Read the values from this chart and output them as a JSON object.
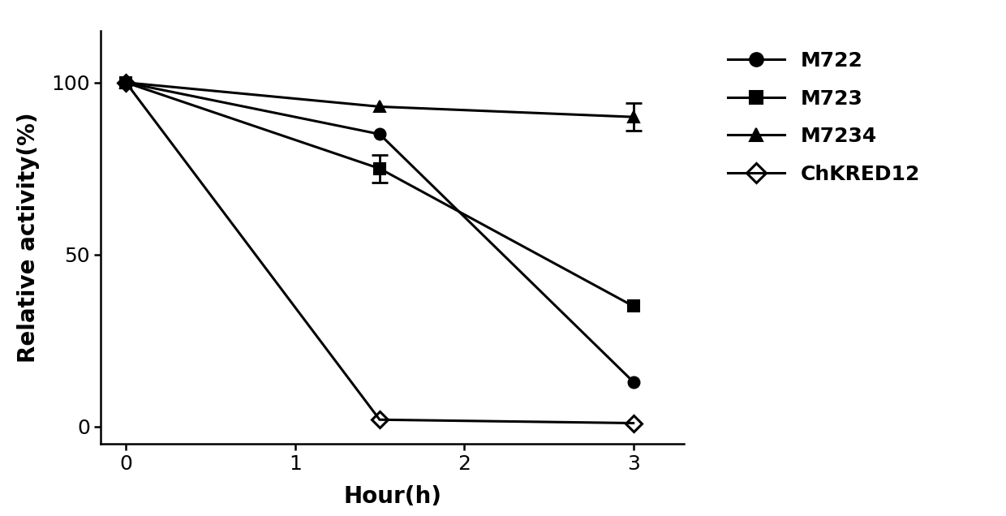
{
  "series": [
    {
      "label": "M722",
      "x": [
        0,
        1.5,
        3
      ],
      "y": [
        100,
        85,
        13
      ],
      "yerr": [
        null,
        null,
        null
      ],
      "marker": "o",
      "marker_size": 10,
      "linewidth": 2.2,
      "color": "#000000",
      "fillstyle": "full"
    },
    {
      "label": "M723",
      "x": [
        0,
        1.5,
        3
      ],
      "y": [
        100,
        75,
        35
      ],
      "yerr": [
        null,
        4,
        null
      ],
      "marker": "s",
      "marker_size": 10,
      "linewidth": 2.2,
      "color": "#000000",
      "fillstyle": "full"
    },
    {
      "label": "M7234",
      "x": [
        0,
        1.5,
        3
      ],
      "y": [
        100,
        93,
        90
      ],
      "yerr": [
        null,
        null,
        4
      ],
      "marker": "^",
      "marker_size": 10,
      "linewidth": 2.2,
      "color": "#000000",
      "fillstyle": "full"
    },
    {
      "label": "ChKRED12",
      "x": [
        0,
        1.5,
        3
      ],
      "y": [
        100,
        2,
        1
      ],
      "yerr": [
        null,
        null,
        null
      ],
      "marker": "D",
      "marker_size": 10,
      "linewidth": 2.2,
      "color": "#000000",
      "fillstyle": "none"
    }
  ],
  "xlabel": "Hour(h)",
  "ylabel": "Relative activity(%)",
  "xlim": [
    -0.15,
    3.3
  ],
  "ylim": [
    -5,
    115
  ],
  "xticks": [
    0,
    1,
    2,
    3
  ],
  "yticks": [
    0,
    50,
    100
  ],
  "xlabel_fontsize": 20,
  "ylabel_fontsize": 20,
  "tick_fontsize": 18,
  "legend_fontsize": 18,
  "background_color": "#ffffff",
  "spine_linewidth": 1.8
}
